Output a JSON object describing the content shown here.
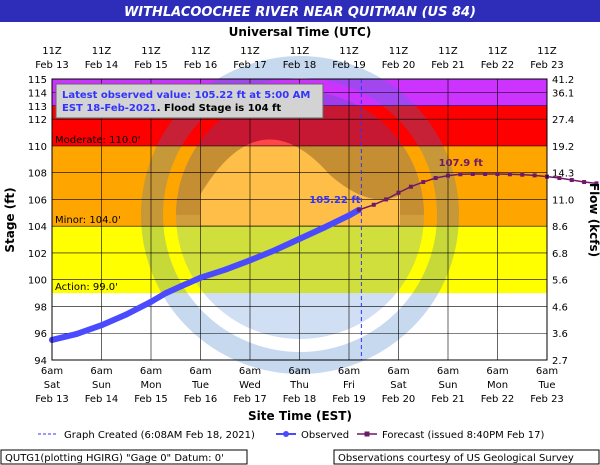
{
  "chart_data": {
    "type": "line",
    "title": "WITHLACOOCHEE RIVER NEAR QUITMAN (US 84)",
    "top_axis_title": "Universal Time (UTC)",
    "xlabel": "Site Time (EST)",
    "ylabel": "Stage (ft)",
    "y2label": "Flow (kcfs)",
    "ylim": [
      94,
      115
    ],
    "y_ticks": [
      94,
      96,
      98,
      100,
      102,
      104,
      106,
      108,
      110,
      112,
      113,
      114,
      115
    ],
    "flow_ticks": [
      {
        "stage": 94,
        "label": "2.7"
      },
      {
        "stage": 96,
        "label": "3.6"
      },
      {
        "stage": 98,
        "label": "4.6"
      },
      {
        "stage": 100,
        "label": "5.6"
      },
      {
        "stage": 102,
        "label": "6.8"
      },
      {
        "stage": 104,
        "label": "8.6"
      },
      {
        "stage": 106,
        "label": "11.0"
      },
      {
        "stage": 108,
        "label": "14.3"
      },
      {
        "stage": 110,
        "label": "19.2"
      },
      {
        "stage": 112,
        "label": "27.4"
      },
      {
        "stage": 114,
        "label": "36.1"
      },
      {
        "stage": 115,
        "label": "41.2"
      }
    ],
    "x_ticks_bottom": [
      {
        "time": "6am",
        "weekday": "Sat",
        "date": "Feb 13"
      },
      {
        "time": "6am",
        "weekday": "Sun",
        "date": "Feb 14"
      },
      {
        "time": "6am",
        "weekday": "Mon",
        "date": "Feb 15"
      },
      {
        "time": "6am",
        "weekday": "Tue",
        "date": "Feb 16"
      },
      {
        "time": "6am",
        "weekday": "Wed",
        "date": "Feb 17"
      },
      {
        "time": "6am",
        "weekday": "Thu",
        "date": "Feb 18"
      },
      {
        "time": "6am",
        "weekday": "Fri",
        "date": "Feb 19"
      },
      {
        "time": "6am",
        "weekday": "Sat",
        "date": "Feb 20"
      },
      {
        "time": "6am",
        "weekday": "Sun",
        "date": "Feb 21"
      },
      {
        "time": "6am",
        "weekday": "Mon",
        "date": "Feb 22"
      },
      {
        "time": "6am",
        "weekday": "Tue",
        "date": "Feb 23"
      }
    ],
    "x_ticks_top": [
      {
        "time": "11Z",
        "date": "Feb 13"
      },
      {
        "time": "11Z",
        "date": "Feb 14"
      },
      {
        "time": "11Z",
        "date": "Feb 15"
      },
      {
        "time": "11Z",
        "date": "Feb 16"
      },
      {
        "time": "11Z",
        "date": "Feb 17"
      },
      {
        "time": "11Z",
        "date": "Feb 18"
      },
      {
        "time": "11Z",
        "date": "Feb 19"
      },
      {
        "time": "11Z",
        "date": "Feb 20"
      },
      {
        "time": "11Z",
        "date": "Feb 21"
      },
      {
        "time": "11Z",
        "date": "Feb 22"
      },
      {
        "time": "11Z",
        "date": "Feb 23"
      }
    ],
    "flood_categories": [
      {
        "label": "Action: 99.0'",
        "from": 99,
        "to": 104,
        "color": "#ffff00"
      },
      {
        "label": "Minor: 104.0'",
        "from": 104,
        "to": 110,
        "color": "#ffa500"
      },
      {
        "label": "Moderate: 110.0'",
        "from": 110,
        "to": 113,
        "color": "#ff0000"
      },
      {
        "label": "",
        "from": 113,
        "to": 115,
        "color": "#cc33ff"
      }
    ],
    "observed": {
      "name": "Observed",
      "color": "#4a4aff",
      "points": [
        {
          "day": 0.0,
          "stage": 95.5
        },
        {
          "day": 0.5,
          "stage": 95.95
        },
        {
          "day": 1.0,
          "stage": 96.6
        },
        {
          "day": 1.5,
          "stage": 97.4
        },
        {
          "day": 2.0,
          "stage": 98.35
        },
        {
          "day": 2.3,
          "stage": 99.0
        },
        {
          "day": 2.6,
          "stage": 99.5
        },
        {
          "day": 3.0,
          "stage": 100.15
        },
        {
          "day": 3.5,
          "stage": 100.75
        },
        {
          "day": 4.0,
          "stage": 101.45
        },
        {
          "day": 4.5,
          "stage": 102.2
        },
        {
          "day": 5.0,
          "stage": 103.05
        },
        {
          "day": 5.5,
          "stage": 103.9
        },
        {
          "day": 6.0,
          "stage": 104.8
        },
        {
          "day": 6.2,
          "stage": 105.22
        }
      ]
    },
    "forecast": {
      "name": "Forecast",
      "color": "#6e1a66",
      "points": [
        {
          "day": 6.2,
          "stage": 105.22
        },
        {
          "day": 6.5,
          "stage": 105.6
        },
        {
          "day": 6.75,
          "stage": 106.0
        },
        {
          "day": 7.0,
          "stage": 106.5
        },
        {
          "day": 7.25,
          "stage": 106.95
        },
        {
          "day": 7.5,
          "stage": 107.3
        },
        {
          "day": 7.75,
          "stage": 107.6
        },
        {
          "day": 8.0,
          "stage": 107.78
        },
        {
          "day": 8.25,
          "stage": 107.88
        },
        {
          "day": 8.5,
          "stage": 107.9
        },
        {
          "day": 8.75,
          "stage": 107.9
        },
        {
          "day": 9.0,
          "stage": 107.9
        },
        {
          "day": 9.25,
          "stage": 107.88
        },
        {
          "day": 9.5,
          "stage": 107.85
        },
        {
          "day": 9.75,
          "stage": 107.8
        },
        {
          "day": 10.0,
          "stage": 107.7
        },
        {
          "day": 10.25,
          "stage": 107.6
        },
        {
          "day": 10.5,
          "stage": 107.45
        },
        {
          "day": 10.75,
          "stage": 107.3
        },
        {
          "day": 11.0,
          "stage": 107.2
        }
      ]
    },
    "annotations": {
      "observed_value_label": "105.22 ft",
      "forecast_crest_label": "107.9 ft",
      "info_line1": "Latest observed value: 105.22  ft at 5:00 AM",
      "info_line2_a": "EST 18-Feb-2021",
      "info_line2_b": ". Flood Stage is 104 ft"
    },
    "graph_created_day": 6.25,
    "grid": true
  },
  "legend": {
    "graph_created": "Graph Created (6:08AM Feb 18, 2021)",
    "observed": "Observed",
    "forecast": "Forecast (issued 8:40PM Feb 17)"
  },
  "footer": {
    "left": "QUTG1(plotting HGIRG) \"Gage 0\" Datum: 0'",
    "right": "Observations courtesy of US Geological Survey"
  },
  "colors": {
    "title_bar": "#2d2dba",
    "plot_background": "#ffffff",
    "grid": "#000000"
  }
}
